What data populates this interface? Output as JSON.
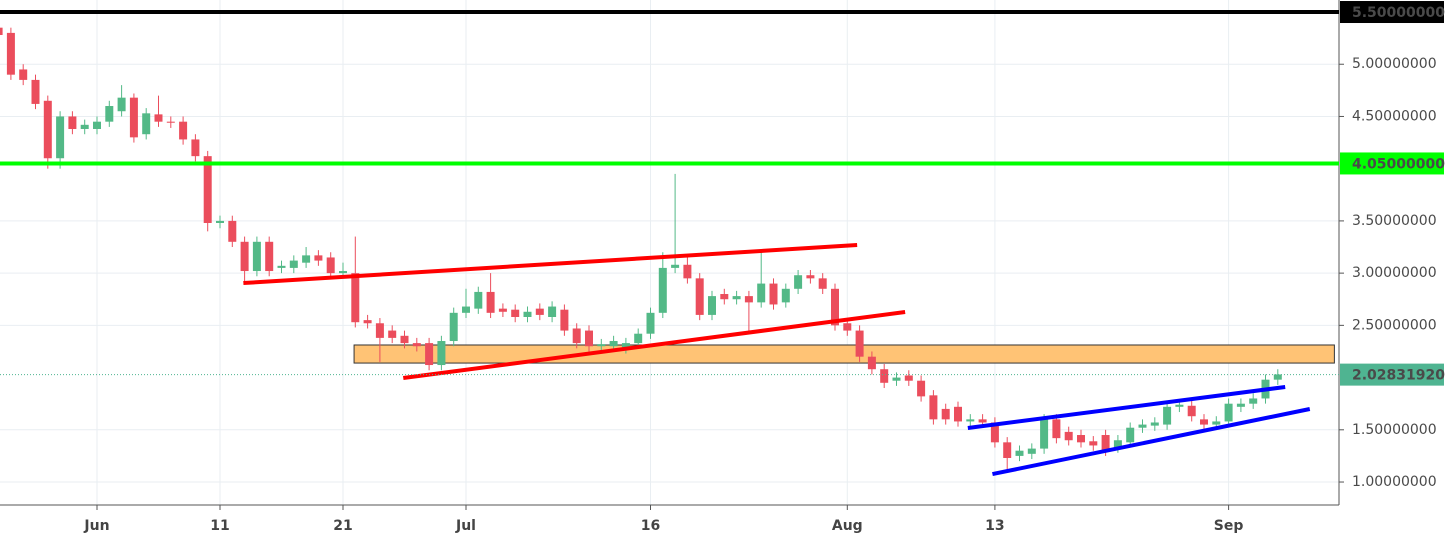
{
  "chart_data": {
    "type": "candlestick",
    "categories": [
      null,
      null,
      null,
      null,
      null,
      null,
      null,
      null,
      "Jun",
      null,
      null,
      null,
      null,
      null,
      null,
      null,
      null,
      null,
      "11",
      null,
      null,
      null,
      null,
      null,
      null,
      null,
      null,
      null,
      "21",
      null,
      null,
      null,
      null,
      null,
      null,
      null,
      null,
      null,
      "Jul",
      null,
      null,
      null,
      null,
      null,
      null,
      null,
      null,
      null,
      null,
      null,
      null,
      null,
      null,
      "16",
      null,
      null,
      null,
      null,
      null,
      null,
      null,
      null,
      null,
      null,
      null,
      null,
      null,
      null,
      null,
      "Aug",
      null,
      null,
      null,
      null,
      null,
      null,
      null,
      null,
      null,
      null,
      null,
      "13",
      null,
      null,
      null,
      null,
      null,
      null,
      null,
      null,
      null,
      null,
      null,
      null,
      null,
      null,
      null,
      null,
      null,
      null,
      "Sep",
      null,
      null,
      null,
      null
    ],
    "open": [
      5.35,
      5.3,
      4.95,
      4.85,
      4.65,
      4.1,
      4.5,
      4.38,
      4.38,
      4.45,
      4.55,
      4.68,
      4.33,
      4.52,
      4.45,
      4.45,
      4.28,
      4.12,
      3.48,
      3.5,
      3.3,
      3.02,
      3.3,
      3.05,
      3.05,
      3.1,
      3.17,
      3.15,
      3.0,
      3.0,
      2.55,
      2.52,
      2.45,
      2.4,
      2.33,
      2.33,
      2.12,
      2.35,
      2.62,
      2.66,
      2.82,
      2.66,
      2.65,
      2.58,
      2.66,
      2.58,
      2.65,
      2.47,
      2.45,
      2.3,
      2.3,
      2.28,
      2.33,
      2.42,
      2.62,
      3.05,
      3.08,
      2.95,
      2.6,
      2.8,
      2.75,
      2.78,
      2.72,
      2.9,
      2.72,
      2.85,
      2.98,
      2.95,
      2.85,
      2.52,
      2.45,
      2.2,
      2.08,
      1.97,
      2.02,
      1.97,
      1.83,
      1.7,
      1.72,
      1.58,
      1.6,
      1.57,
      1.38,
      1.25,
      1.27,
      1.32,
      1.6,
      1.48,
      1.45,
      1.39,
      1.45,
      1.33,
      1.38,
      1.52,
      1.54,
      1.55,
      1.72,
      1.73,
      1.6,
      1.55,
      1.58,
      1.72,
      1.75,
      1.8,
      1.98
    ],
    "high": [
      5.4,
      5.35,
      5.0,
      4.9,
      4.7,
      4.55,
      4.55,
      4.47,
      4.5,
      4.65,
      4.8,
      4.72,
      4.58,
      4.7,
      4.5,
      4.5,
      4.33,
      4.17,
      3.55,
      3.55,
      3.35,
      3.35,
      3.35,
      3.12,
      3.17,
      3.25,
      3.22,
      3.2,
      3.1,
      3.35,
      2.6,
      2.57,
      2.5,
      2.45,
      2.38,
      2.38,
      2.4,
      2.67,
      2.85,
      2.87,
      3.0,
      2.71,
      2.7,
      2.68,
      2.71,
      2.73,
      2.7,
      2.52,
      2.5,
      2.37,
      2.4,
      2.38,
      2.47,
      2.67,
      3.2,
      3.95,
      3.15,
      3.0,
      2.83,
      2.85,
      2.83,
      2.83,
      3.2,
      2.95,
      2.9,
      3.03,
      3.03,
      3.0,
      2.9,
      2.57,
      2.5,
      2.25,
      2.13,
      2.05,
      2.07,
      2.02,
      1.88,
      1.75,
      1.77,
      1.65,
      1.65,
      1.62,
      1.43,
      1.35,
      1.37,
      1.65,
      1.65,
      1.53,
      1.5,
      1.44,
      1.5,
      1.45,
      1.57,
      1.6,
      1.62,
      1.77,
      1.79,
      1.78,
      1.65,
      1.63,
      1.8,
      1.8,
      1.85,
      2.03,
      2.08
    ],
    "low": [
      5.2,
      4.85,
      4.8,
      4.57,
      4.0,
      4.0,
      4.33,
      4.33,
      4.33,
      4.4,
      4.5,
      4.25,
      4.28,
      4.4,
      4.39,
      4.23,
      4.07,
      3.4,
      3.43,
      3.25,
      2.9,
      2.97,
      2.97,
      3.0,
      3.0,
      3.05,
      3.07,
      2.95,
      2.95,
      2.48,
      2.47,
      2.15,
      2.33,
      2.28,
      2.25,
      2.07,
      2.07,
      2.3,
      2.57,
      2.61,
      2.57,
      2.58,
      2.53,
      2.53,
      2.55,
      2.53,
      2.4,
      2.28,
      2.25,
      2.25,
      2.25,
      2.23,
      2.28,
      2.37,
      2.57,
      3.0,
      2.9,
      2.55,
      2.55,
      2.7,
      2.7,
      2.42,
      2.67,
      2.65,
      2.67,
      2.8,
      2.9,
      2.8,
      2.45,
      2.4,
      2.15,
      2.03,
      1.9,
      1.92,
      1.92,
      1.77,
      1.55,
      1.55,
      1.53,
      1.53,
      1.52,
      1.33,
      1.1,
      1.2,
      1.22,
      1.27,
      1.37,
      1.35,
      1.33,
      1.3,
      1.25,
      1.28,
      1.33,
      1.47,
      1.49,
      1.5,
      1.67,
      1.58,
      1.5,
      1.5,
      1.53,
      1.67,
      1.7,
      1.75,
      1.93
    ],
    "close": [
      5.28,
      4.9,
      4.85,
      4.62,
      4.1,
      4.5,
      4.38,
      4.42,
      4.45,
      4.6,
      4.68,
      4.3,
      4.53,
      4.45,
      4.44,
      4.28,
      4.12,
      3.48,
      3.5,
      3.3,
      3.02,
      3.3,
      3.02,
      3.07,
      3.12,
      3.17,
      3.12,
      3.0,
      3.02,
      2.53,
      2.52,
      2.38,
      2.38,
      2.33,
      2.3,
      2.12,
      2.35,
      2.62,
      2.68,
      2.82,
      2.62,
      2.63,
      2.58,
      2.63,
      2.6,
      2.68,
      2.45,
      2.33,
      2.3,
      2.32,
      2.35,
      2.33,
      2.42,
      2.62,
      3.05,
      3.08,
      2.95,
      2.6,
      2.78,
      2.75,
      2.78,
      2.72,
      2.9,
      2.7,
      2.85,
      2.98,
      2.95,
      2.85,
      2.5,
      2.45,
      2.2,
      2.08,
      1.95,
      2.0,
      1.97,
      1.82,
      1.6,
      1.6,
      1.58,
      1.6,
      1.57,
      1.38,
      1.23,
      1.3,
      1.32,
      1.6,
      1.42,
      1.4,
      1.38,
      1.35,
      1.3,
      1.4,
      1.52,
      1.55,
      1.57,
      1.72,
      1.74,
      1.63,
      1.55,
      1.58,
      1.75,
      1.75,
      1.8,
      1.98,
      2.03
    ],
    "up_color": "#53b987",
    "down_color": "#eb4d5c",
    "ylim": [
      0.78,
      5.615
    ],
    "yticks": [
      {
        "value": 1.0,
        "label": "1.00000000"
      },
      {
        "value": 1.5,
        "label": "1.50000000"
      },
      {
        "value": 2.5,
        "label": "2.50000000"
      },
      {
        "value": 3.0,
        "label": "3.00000000"
      },
      {
        "value": 3.5,
        "label": "3.50000000"
      },
      {
        "value": 4.5,
        "label": "4.50000000"
      },
      {
        "value": 5.0,
        "label": "5.00000000"
      }
    ],
    "grid": true,
    "price_levels": [
      {
        "value": 5.5,
        "label": "5.50000000",
        "color": "#000000",
        "text_color": "#ffffff",
        "style": "solid"
      },
      {
        "value": 4.05,
        "label": "4.05000000",
        "color": "#00ff00",
        "text_color": "#000000",
        "style": "solid"
      },
      {
        "value": 2.0283192,
        "label": "2.02831920",
        "color": "#4fb491",
        "text_color": "#ffffff",
        "style": "dotted"
      }
    ],
    "trendlines": [
      {
        "color": "#ff0000",
        "x": [
          19.9,
          69.8
        ],
        "y": [
          2.905,
          3.269
        ]
      },
      {
        "color": "#ff0000",
        "x": [
          32.9,
          73.7
        ],
        "y": [
          1.996,
          2.628
        ]
      },
      {
        "color": "#0000ff",
        "x": [
          78.8,
          104.6
        ],
        "y": [
          1.517,
          1.91
        ]
      },
      {
        "color": "#0000ff",
        "x": [
          80.8,
          106.6
        ],
        "y": [
          1.076,
          1.699
        ]
      }
    ],
    "zones": [
      {
        "color": "#ffc375",
        "x": [
          28.9,
          108.6
        ],
        "y": [
          2.312,
          2.139
        ]
      }
    ]
  }
}
